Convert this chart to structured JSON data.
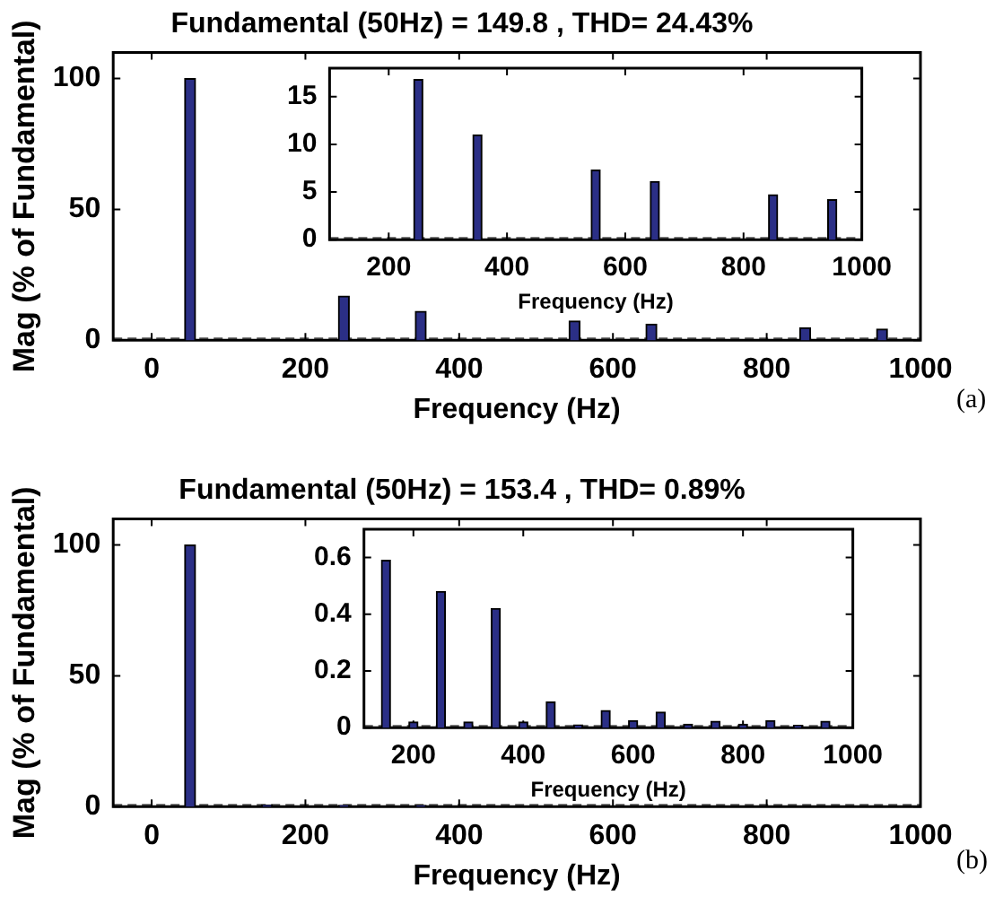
{
  "chart_data": [
    {
      "type": "bar",
      "title": "Fundamental (50Hz) = 149.8 , THD= 24.43%",
      "xlabel": "Frequency (Hz)",
      "ylabel": "Mag (% of Fundamental)",
      "annotations": [
        "(a)"
      ],
      "x": [
        50,
        250,
        350,
        550,
        650,
        850,
        950
      ],
      "values": [
        100,
        16.8,
        11,
        7.3,
        6.1,
        4.7,
        4.2
      ],
      "color": "#2b2f86",
      "xlim": [
        -50,
        1000
      ],
      "xticks": [
        0,
        200,
        400,
        600,
        800,
        1000
      ],
      "ylim": [
        0,
        110
      ],
      "yticks": [
        0,
        50,
        100
      ],
      "grid": false,
      "legend": false,
      "ref_lines": [
        {
          "axis": "y",
          "value": 0,
          "line_style": "dashed",
          "color": "#555555"
        }
      ]
    },
    {
      "type": "bar",
      "xlabel": "Frequency (Hz)",
      "x": [
        250,
        350,
        550,
        650,
        850,
        950
      ],
      "values": [
        16.8,
        11,
        7.3,
        6.1,
        4.7,
        4.2
      ],
      "color": "#2b2f86",
      "xlim": [
        100,
        1000
      ],
      "xticks": [
        200,
        400,
        600,
        800,
        1000
      ],
      "ylim": [
        0,
        18
      ],
      "yticks": [
        0,
        5,
        10,
        15
      ],
      "grid": false,
      "legend": false,
      "ref_lines": [
        {
          "axis": "y",
          "value": 0,
          "line_style": "dashed",
          "color": "#555555"
        }
      ]
    },
    {
      "type": "bar",
      "title": "Fundamental (50Hz) = 153.4 , THD= 0.89%",
      "xlabel": "Frequency (Hz)",
      "ylabel": "Mag (% of Fundamental)",
      "annotations": [
        "(b)"
      ],
      "x": [
        50,
        150,
        250,
        350
      ],
      "values": [
        100,
        0.59,
        0.48,
        0.42
      ],
      "color": "#2b2f86",
      "xlim": [
        -50,
        1000
      ],
      "xticks": [
        0,
        200,
        400,
        600,
        800,
        1000
      ],
      "ylim": [
        0,
        110
      ],
      "yticks": [
        0,
        50,
        100
      ],
      "grid": false,
      "legend": false,
      "ref_lines": [
        {
          "axis": "y",
          "value": 0,
          "line_style": "dashed",
          "color": "#555555"
        }
      ]
    },
    {
      "type": "bar",
      "xlabel": "Frequency (Hz)",
      "x": [
        150,
        200,
        250,
        300,
        350,
        400,
        450,
        500,
        550,
        600,
        650,
        700,
        750,
        800,
        850,
        900,
        950
      ],
      "values": [
        0.59,
        0.02,
        0.48,
        0.02,
        0.42,
        0.02,
        0.09,
        0.01,
        0.06,
        0.025,
        0.055,
        0.012,
        0.022,
        0.012,
        0.025,
        0.008,
        0.022
      ],
      "color": "#2b2f86",
      "xlim": [
        110,
        1000
      ],
      "xticks": [
        {
          "value": 200,
          "label": "200"
        },
        {
          "value": 400,
          "label": "400"
        },
        {
          "value": 600,
          "label": "600"
        },
        {
          "value": 800,
          "label": "800"
        },
        {
          "value": 1000,
          "label": "1000"
        }
      ],
      "ylim": [
        0,
        0.7
      ],
      "yticks": [
        0,
        0.2,
        0.4,
        0.6
      ],
      "grid": false,
      "legend": false,
      "ref_lines": [
        {
          "axis": "y",
          "value": 0,
          "line_style": "dashed",
          "color": "#555555"
        }
      ]
    }
  ]
}
